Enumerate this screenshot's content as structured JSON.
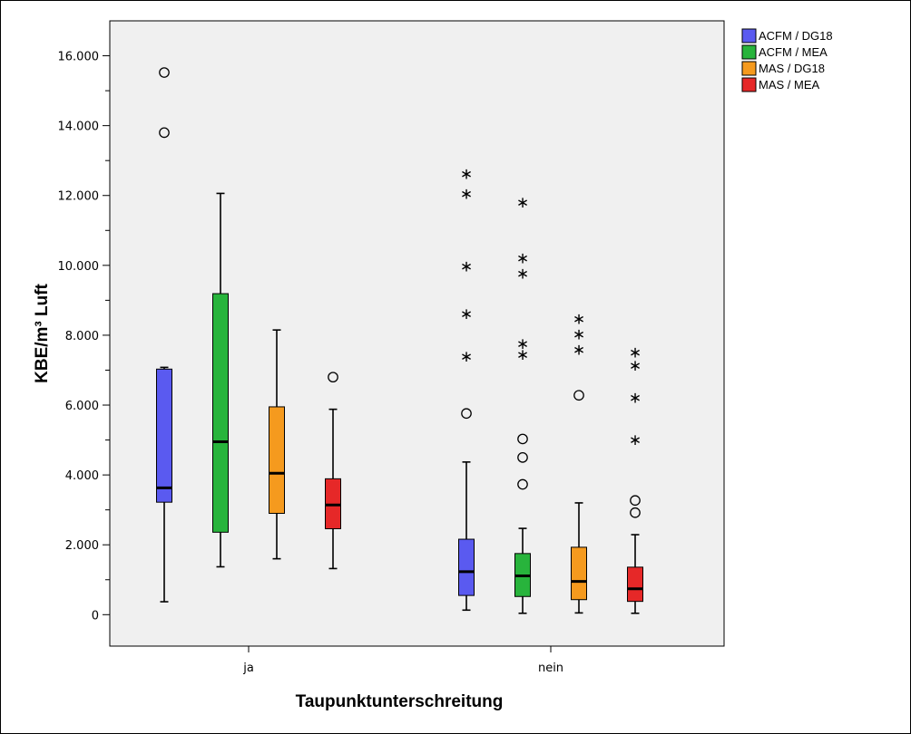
{
  "chart_data": {
    "type": "box",
    "xlabel": "Taupunktunterschreitung",
    "ylabel": "KBE/m³ Luft",
    "ylim": [
      -900,
      17000
    ],
    "yticks": [
      {
        "value": 0,
        "label": "0"
      },
      {
        "value": 2000,
        "label": "2.000"
      },
      {
        "value": 4000,
        "label": "4.000"
      },
      {
        "value": 6000,
        "label": "6.000"
      },
      {
        "value": 8000,
        "label": "8.000"
      },
      {
        "value": 10000,
        "label": "10.000"
      },
      {
        "value": 12000,
        "label": "12.000"
      },
      {
        "value": 14000,
        "label": "14.000"
      },
      {
        "value": 16000,
        "label": "16.000"
      }
    ],
    "minor_tick_step": 1000,
    "categories": [
      "ja",
      "nein"
    ],
    "legend_position": "top-right",
    "grid": false,
    "series": [
      {
        "name": "ACFM / DG18",
        "color": "#5a5af0"
      },
      {
        "name": "ACFM / MEA",
        "color": "#28b43c"
      },
      {
        "name": "MAS / DG18",
        "color": "#f59a1e"
      },
      {
        "name": "MAS / MEA",
        "color": "#e62828"
      }
    ],
    "boxes": [
      {
        "category": "ja",
        "series": "ACFM / DG18",
        "min": 370,
        "q1": 3220,
        "median": 3630,
        "q3": 7030,
        "max": 7080,
        "outliers": [
          13800,
          15520
        ],
        "extremes": []
      },
      {
        "category": "ja",
        "series": "ACFM / MEA",
        "min": 1370,
        "q1": 2360,
        "median": 4950,
        "q3": 9190,
        "max": 12060,
        "outliers": [],
        "extremes": []
      },
      {
        "category": "ja",
        "series": "MAS / DG18",
        "min": 1600,
        "q1": 2900,
        "median": 4050,
        "q3": 5950,
        "max": 8150,
        "outliers": [],
        "extremes": []
      },
      {
        "category": "ja",
        "series": "MAS / MEA",
        "min": 1320,
        "q1": 2460,
        "median": 3140,
        "q3": 3890,
        "max": 5880,
        "outliers": [
          6800
        ],
        "extremes": []
      },
      {
        "category": "nein",
        "series": "ACFM / DG18",
        "min": 130,
        "q1": 550,
        "median": 1230,
        "q3": 2160,
        "max": 4370,
        "outliers": [
          5760
        ],
        "extremes": [
          7400,
          8620,
          9980,
          12060,
          12630
        ]
      },
      {
        "category": "nein",
        "series": "ACFM / MEA",
        "min": 40,
        "q1": 520,
        "median": 1110,
        "q3": 1750,
        "max": 2470,
        "outliers": [
          3730,
          4500,
          5030
        ],
        "extremes": [
          7450,
          7770,
          9780,
          10220,
          11810
        ]
      },
      {
        "category": "nein",
        "series": "MAS / DG18",
        "min": 50,
        "q1": 430,
        "median": 950,
        "q3": 1930,
        "max": 3200,
        "outliers": [
          6280
        ],
        "extremes": [
          7590,
          8040,
          8480
        ]
      },
      {
        "category": "nein",
        "series": "MAS / MEA",
        "min": 40,
        "q1": 380,
        "median": 740,
        "q3": 1360,
        "max": 2290,
        "outliers": [
          2920,
          3270
        ],
        "extremes": [
          5020,
          6220,
          7140,
          7520
        ]
      }
    ]
  }
}
